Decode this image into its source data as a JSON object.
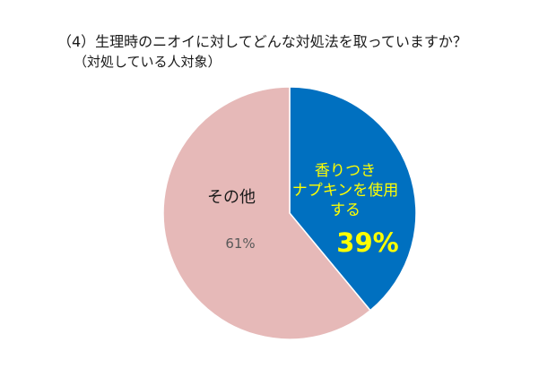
{
  "title": "（4）生理時のニオイに対してどんな対処法を取っていますか？",
  "subtitle": "（対処している人対象）",
  "colors": {
    "blue": "#0070C0",
    "pink": "#E6B9B8",
    "yellow": "#FFFF00",
    "gray_text": "#595959"
  },
  "chart_data": {
    "type": "pie",
    "title": "（4）生理時のニオイに対してどんな対処法を取っていますか？",
    "subtitle": "（対処している人対象）",
    "slices": [
      {
        "label": [
          "香りつき",
          "ナプキンを使用",
          "する"
        ],
        "value": 39,
        "value_label": "39%",
        "color": "#0070C0",
        "text_color": "#FFFF00"
      },
      {
        "label": [
          "その他"
        ],
        "value": 61,
        "value_label": "61%",
        "color": "#E6B9B8",
        "text_color": "#1a1a1a"
      }
    ],
    "start_angle_deg": 0,
    "direction": "clockwise"
  }
}
